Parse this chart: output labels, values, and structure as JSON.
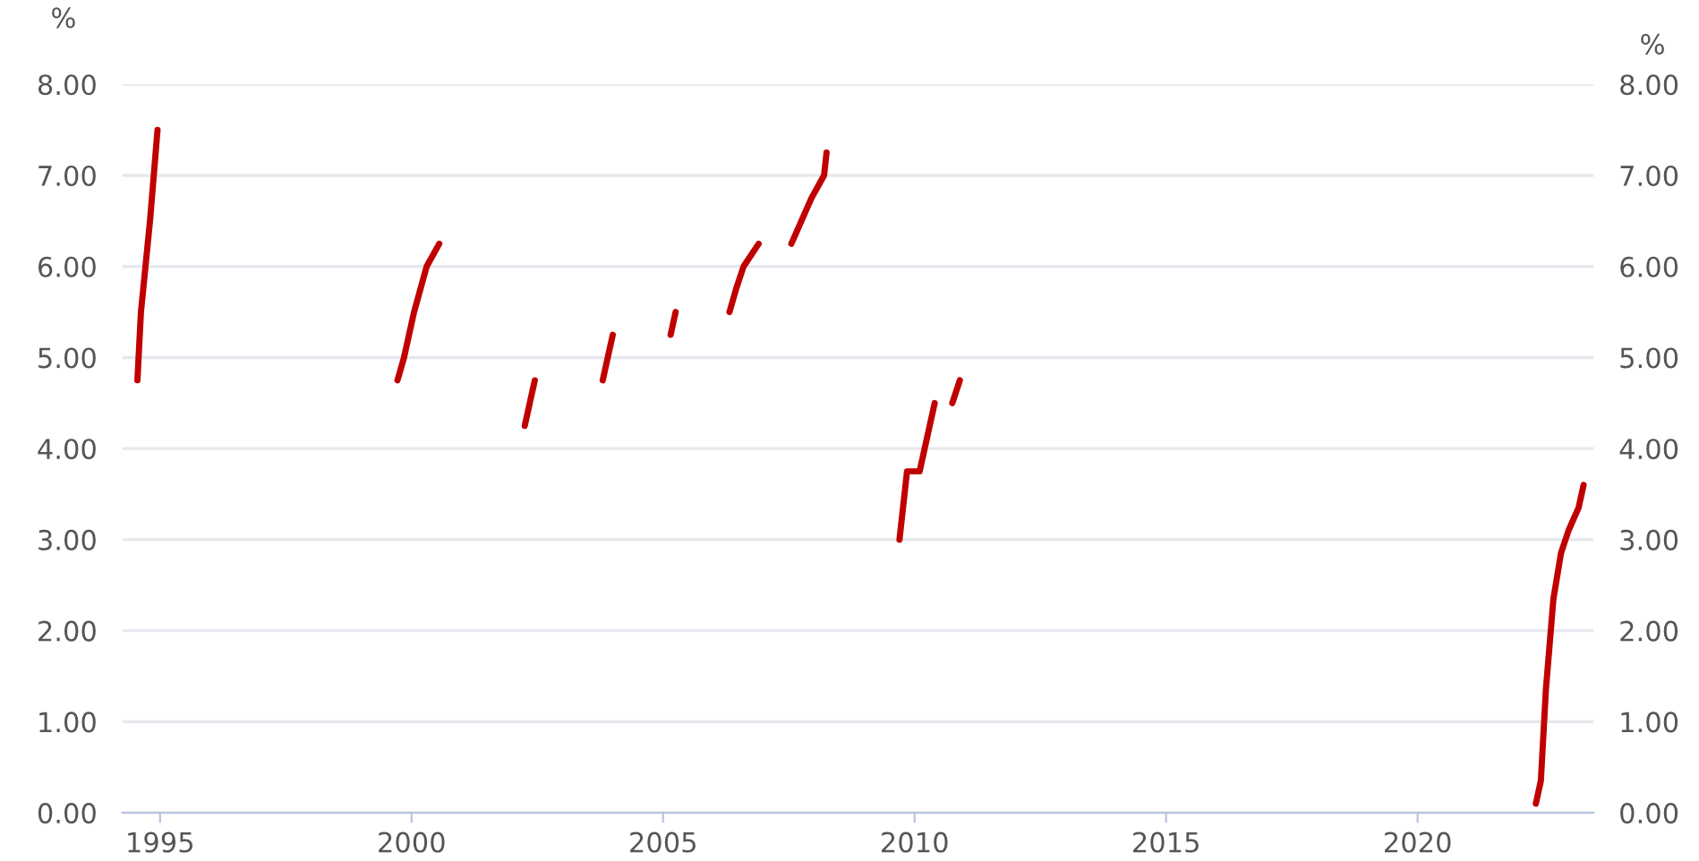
{
  "chart_data": {
    "type": "line",
    "ylabel": "%",
    "y2label": "%",
    "grid": "y",
    "marker": "none",
    "line_style": "solid",
    "xlim": [
      1994.25,
      2023.5
    ],
    "xticks": [
      1995,
      2000,
      2005,
      2010,
      2015,
      2020
    ],
    "ylim": [
      0,
      8
    ],
    "yticks": [
      {
        "value": 0,
        "label": "0.00"
      },
      {
        "value": 1,
        "label": "1.00"
      },
      {
        "value": 2,
        "label": "2.00"
      },
      {
        "value": 3,
        "label": "3.00"
      },
      {
        "value": 4,
        "label": "4.00"
      },
      {
        "value": 5,
        "label": "5.00"
      },
      {
        "value": 6,
        "label": "6.00"
      },
      {
        "value": 7,
        "label": "7.00"
      },
      {
        "value": 8,
        "label": "8.00"
      }
    ],
    "y2lim": [
      0,
      8
    ],
    "y2ticks": [
      {
        "value": 0,
        "label": "0.00"
      },
      {
        "value": 1,
        "label": "1.00"
      },
      {
        "value": 2,
        "label": "2.00"
      },
      {
        "value": 3,
        "label": "3.00"
      },
      {
        "value": 4,
        "label": "4.00"
      },
      {
        "value": 5,
        "label": "5.00"
      },
      {
        "value": 6,
        "label": "6.00"
      },
      {
        "value": 7,
        "label": "7.00"
      },
      {
        "value": 8,
        "label": "8.00"
      }
    ],
    "series": [
      {
        "color": "#c00000",
        "x": [
          1994.55,
          1994.62,
          1994.8,
          1994.95,
          1997,
          1999.72,
          1999.85,
          2000.05,
          2000.3,
          2000.55,
          2001,
          2002.25,
          2002.45,
          2003,
          2003.8,
          2004.0,
          2004.5,
          2005.15,
          2005.25,
          2005.8,
          2006.32,
          2006.45,
          2006.6,
          2006.9,
          2007.2,
          2007.55,
          2007.75,
          2007.95,
          2008.2,
          2008.25,
          2009,
          2009.7,
          2009.85,
          2010.1,
          2010.4,
          2010.6,
          2010.75,
          2010.9,
          2015,
          2022.35,
          2022.45,
          2022.55,
          2022.7,
          2022.85,
          2023.0,
          2023.2,
          2023.3
        ],
        "values": [
          4.75,
          5.5,
          6.5,
          7.5,
          null,
          4.75,
          5.0,
          5.5,
          6.0,
          6.25,
          null,
          4.25,
          4.75,
          null,
          4.75,
          5.25,
          null,
          5.25,
          5.5,
          null,
          5.5,
          5.75,
          6.0,
          6.25,
          null,
          6.25,
          6.5,
          6.75,
          7.0,
          7.25,
          null,
          3.0,
          3.75,
          3.75,
          4.5,
          null,
          4.5,
          4.75,
          null,
          0.1,
          0.35,
          1.35,
          2.35,
          2.85,
          3.1,
          3.35,
          3.6
        ]
      }
    ]
  }
}
